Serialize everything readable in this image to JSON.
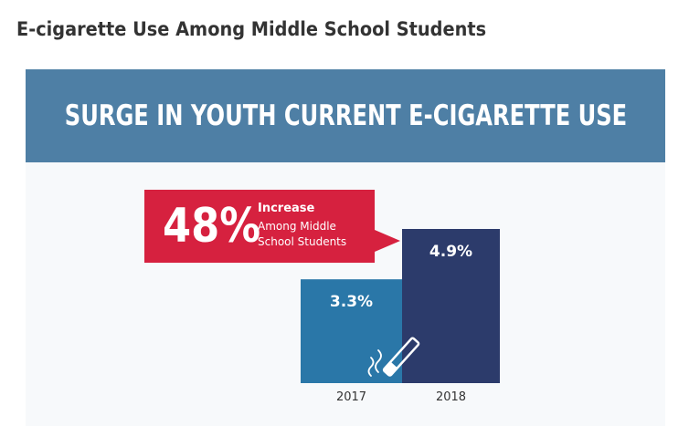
{
  "page": {
    "title": "E-cigarette Use Among Middle School Students"
  },
  "banner": {
    "text": "SURGE IN YOUTH CURRENT E-CIGARETTE USE",
    "color": "#4e7fa5"
  },
  "callout": {
    "percent": "48%",
    "line1": "Increase",
    "line2": "Among Middle",
    "line3": "School Students",
    "color": "#d6213f"
  },
  "icons": {
    "illustration": "e-cigarette-icon"
  },
  "chart_data": {
    "type": "bar",
    "categories": [
      "2017",
      "2018"
    ],
    "values": [
      3.3,
      4.9
    ],
    "value_labels": [
      "3.3%",
      "4.9%"
    ],
    "colors": [
      "#2a77a8",
      "#2c3b6b"
    ],
    "ylim": [
      0,
      4.9
    ],
    "grid": false,
    "legend": "none"
  }
}
